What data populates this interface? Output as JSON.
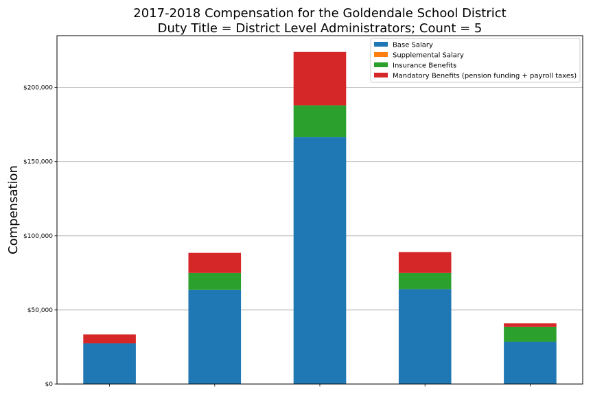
{
  "chart_data": {
    "type": "bar",
    "stacked": true,
    "title": "2017-2018 Compensation for the Goldendale School District",
    "subtitle": "Duty Title = District Level Administrators; Count = 5",
    "xlabel": "",
    "ylabel": "Compensation",
    "ylim": [
      0,
      235000
    ],
    "yticks": [
      0,
      50000,
      100000,
      150000,
      200000
    ],
    "ytick_labels": [
      "$0",
      "$50,000",
      "$100,000",
      "$150,000",
      "$200,000"
    ],
    "categories": [
      "",
      "",
      "",
      "",
      ""
    ],
    "grid": "horizontal",
    "legend_position": "top-right",
    "series": [
      {
        "name": "Base Salary",
        "color": "#1f77b4",
        "values": [
          27500,
          63500,
          166500,
          64000,
          28500
        ]
      },
      {
        "name": "Supplemental Salary",
        "color": "#ff7f0e",
        "values": [
          0,
          0,
          0,
          0,
          0
        ]
      },
      {
        "name": "Insurance Benefits",
        "color": "#2ca02c",
        "values": [
          0,
          11500,
          21500,
          11000,
          10000
        ]
      },
      {
        "name": "Mandatory Benefits (pension funding + payroll taxes)",
        "color": "#d62728",
        "values": [
          6000,
          13500,
          36000,
          14000,
          2500
        ]
      }
    ]
  }
}
